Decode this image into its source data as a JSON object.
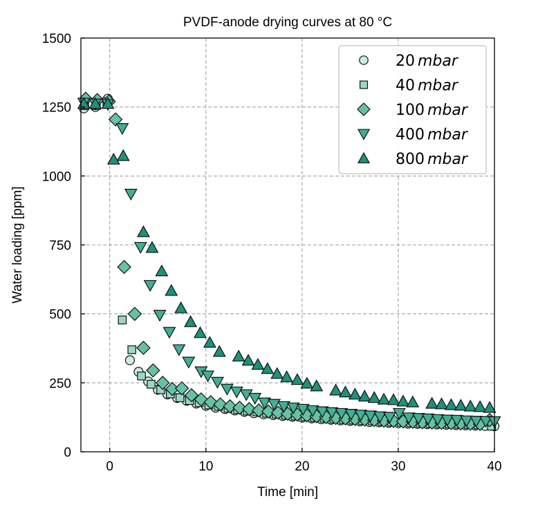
{
  "chart_data": {
    "type": "scatter",
    "title": "PVDF-anode drying curves at 80 °C",
    "xlabel": "Time [min]",
    "ylabel": "Water loading [ppm]",
    "xlim": [
      -3,
      40
    ],
    "ylim": [
      0,
      1500
    ],
    "xticks": [
      0,
      10,
      20,
      30,
      40
    ],
    "yticks": [
      0,
      250,
      500,
      750,
      1000,
      1250,
      1500
    ],
    "xtick_labels": [
      "0",
      "10",
      "20",
      "30",
      "40"
    ],
    "ytick_labels": [
      "0",
      "250",
      "500",
      "750",
      "1000",
      "1250",
      "1500"
    ],
    "grid": true,
    "grid_style": "dashed",
    "legend_position": "top-right",
    "series": [
      {
        "name": "20 mbar",
        "value_label": "20",
        "unit_label": "mbar",
        "marker": "circle",
        "color": "#ccece6",
        "points": [
          [
            -2.7,
            1245
          ],
          [
            -1.5,
            1250
          ],
          [
            -0.2,
            1280
          ],
          [
            2.1,
            332
          ],
          [
            3.0,
            290
          ],
          [
            4.0,
            255
          ],
          [
            5.0,
            225
          ],
          [
            6.0,
            208
          ],
          [
            7.0,
            195
          ],
          [
            8.0,
            185
          ],
          [
            9.0,
            175
          ],
          [
            10.0,
            167
          ],
          [
            11.0,
            160
          ],
          [
            12.0,
            155
          ],
          [
            13.0,
            150
          ],
          [
            14.0,
            145
          ],
          [
            15.0,
            140
          ],
          [
            16.0,
            136
          ],
          [
            17.0,
            133
          ],
          [
            18.0,
            130
          ],
          [
            19.0,
            127
          ],
          [
            20.0,
            124
          ],
          [
            21.0,
            121
          ],
          [
            22.0,
            118
          ],
          [
            23.0,
            116
          ],
          [
            24.0,
            114
          ],
          [
            25.0,
            112
          ],
          [
            26.0,
            110
          ],
          [
            27.0,
            108
          ],
          [
            28.0,
            107
          ],
          [
            29.0,
            105
          ],
          [
            30.0,
            104
          ],
          [
            31.0,
            102
          ],
          [
            32.0,
            101
          ],
          [
            33.0,
            100
          ],
          [
            34.0,
            99
          ],
          [
            35.0,
            98
          ],
          [
            36.0,
            97
          ],
          [
            37.0,
            96
          ],
          [
            38.0,
            95
          ],
          [
            39.0,
            94
          ],
          [
            40.0,
            93
          ]
        ]
      },
      {
        "name": "40 mbar",
        "value_label": "40",
        "unit_label": "mbar",
        "marker": "square",
        "color": "#99d8c9",
        "points": [
          [
            -2.6,
            1255
          ],
          [
            -1.4,
            1255
          ],
          [
            -0.3,
            1270
          ],
          [
            1.3,
            478
          ],
          [
            2.3,
            370
          ],
          [
            3.3,
            275
          ],
          [
            4.3,
            245
          ],
          [
            5.3,
            225
          ],
          [
            6.3,
            210
          ],
          [
            7.3,
            196
          ],
          [
            8.3,
            186
          ],
          [
            9.3,
            178
          ],
          [
            10.3,
            170
          ],
          [
            11.3,
            165
          ],
          [
            12.3,
            158
          ],
          [
            13.3,
            153
          ],
          [
            14.3,
            148
          ],
          [
            15.3,
            145
          ],
          [
            16.3,
            140
          ],
          [
            17.3,
            137
          ],
          [
            18.3,
            133
          ],
          [
            19.3,
            130
          ],
          [
            20.3,
            127
          ],
          [
            21.3,
            124
          ],
          [
            22.3,
            122
          ],
          [
            23.3,
            119
          ],
          [
            24.3,
            117
          ],
          [
            25.3,
            115
          ],
          [
            26.3,
            113
          ],
          [
            27.3,
            112
          ],
          [
            28.3,
            110
          ],
          [
            29.3,
            108
          ],
          [
            30.3,
            107
          ],
          [
            31.3,
            105
          ],
          [
            32.3,
            104
          ],
          [
            33.3,
            103
          ],
          [
            34.3,
            102
          ],
          [
            35.3,
            101
          ],
          [
            36.3,
            100
          ],
          [
            37.3,
            99
          ],
          [
            38.3,
            98
          ],
          [
            39.7,
            93
          ]
        ]
      },
      {
        "name": "100 mbar",
        "value_label": "100",
        "unit_label": "mbar",
        "marker": "diamond",
        "color": "#66c2a4",
        "points": [
          [
            -2.5,
            1280
          ],
          [
            -1.3,
            1275
          ],
          [
            -0.1,
            1270
          ],
          [
            0.6,
            1205
          ],
          [
            1.5,
            670
          ],
          [
            2.6,
            500
          ],
          [
            3.5,
            377
          ],
          [
            4.5,
            295
          ],
          [
            5.5,
            250
          ],
          [
            6.5,
            228
          ],
          [
            7.5,
            230
          ],
          [
            8.5,
            205
          ],
          [
            9.5,
            190
          ],
          [
            10.5,
            180
          ],
          [
            11.5,
            172
          ],
          [
            12.5,
            165
          ],
          [
            13.5,
            160
          ],
          [
            14.5,
            155
          ],
          [
            15.5,
            150
          ],
          [
            16.5,
            146
          ],
          [
            17.5,
            142
          ],
          [
            18.5,
            138
          ],
          [
            19.5,
            135
          ],
          [
            20.5,
            132
          ],
          [
            21.5,
            129
          ],
          [
            22.5,
            126
          ],
          [
            23.5,
            123
          ],
          [
            24.5,
            121
          ],
          [
            25.5,
            119
          ],
          [
            26.5,
            117
          ],
          [
            27.5,
            115
          ],
          [
            28.5,
            113
          ],
          [
            29.5,
            112
          ],
          [
            30.5,
            110
          ],
          [
            31.5,
            109
          ],
          [
            32.5,
            107
          ],
          [
            33.5,
            106
          ],
          [
            34.5,
            105
          ],
          [
            35.5,
            104
          ],
          [
            36.5,
            103
          ],
          [
            37.5,
            102
          ],
          [
            38.5,
            101
          ],
          [
            39.5,
            115
          ]
        ]
      },
      {
        "name": "400 mbar",
        "value_label": "400",
        "unit_label": "mbar",
        "marker": "triangle-down",
        "color": "#41ae96",
        "points": [
          [
            -2.7,
            1265
          ],
          [
            -1.5,
            1262
          ],
          [
            -0.2,
            1260
          ],
          [
            1.3,
            1173
          ],
          [
            2.2,
            935
          ],
          [
            3.2,
            742
          ],
          [
            4.2,
            604
          ],
          [
            5.2,
            496
          ],
          [
            6.2,
            434
          ],
          [
            7.2,
            371
          ],
          [
            8.2,
            326
          ],
          [
            9.5,
            291
          ],
          [
            10.2,
            276
          ],
          [
            11.2,
            253
          ],
          [
            12.2,
            228
          ],
          [
            13.2,
            218
          ],
          [
            14.2,
            208
          ],
          [
            15.1,
            195
          ],
          [
            16.1,
            178
          ],
          [
            17.1,
            173
          ],
          [
            18.1,
            165
          ],
          [
            19.1,
            160
          ],
          [
            20.1,
            155
          ],
          [
            21.1,
            150
          ],
          [
            22.1,
            146
          ],
          [
            23.1,
            143
          ],
          [
            24.1,
            140
          ],
          [
            25.1,
            137
          ],
          [
            26.1,
            134
          ],
          [
            27.1,
            131
          ],
          [
            28.1,
            128
          ],
          [
            29.1,
            126
          ],
          [
            30.1,
            140
          ],
          [
            31.1,
            124
          ],
          [
            32.1,
            122
          ],
          [
            33.1,
            120
          ],
          [
            34.1,
            118
          ],
          [
            35.1,
            116
          ],
          [
            36.1,
            115
          ],
          [
            37.1,
            113
          ],
          [
            38.1,
            112
          ],
          [
            39.1,
            111
          ],
          [
            40.0,
            110
          ]
        ]
      },
      {
        "name": "800 mbar",
        "value_label": "800",
        "unit_label": "mbar",
        "marker": "triangle-up",
        "color": "#1f9079",
        "points": [
          [
            -2.7,
            1262
          ],
          [
            -1.5,
            1262
          ],
          [
            -0.2,
            1262
          ],
          [
            0.4,
            1060
          ],
          [
            1.4,
            1073
          ],
          [
            3.5,
            797
          ],
          [
            4.4,
            740
          ],
          [
            5.4,
            655
          ],
          [
            6.4,
            584
          ],
          [
            7.4,
            521
          ],
          [
            8.4,
            471
          ],
          [
            9.4,
            431
          ],
          [
            10.4,
            396
          ],
          [
            11.4,
            363
          ],
          [
            13.4,
            346
          ],
          [
            14.4,
            331
          ],
          [
            15.4,
            316
          ],
          [
            16.4,
            301
          ],
          [
            17.4,
            283
          ],
          [
            18.4,
            271
          ],
          [
            19.5,
            261
          ],
          [
            20.5,
            248
          ],
          [
            21.5,
            238
          ],
          [
            23.5,
            223
          ],
          [
            24.5,
            216
          ],
          [
            25.5,
            208
          ],
          [
            26.5,
            201
          ],
          [
            27.5,
            196
          ],
          [
            28.5,
            190
          ],
          [
            29.5,
            188
          ],
          [
            30.5,
            183
          ],
          [
            31.5,
            180
          ],
          [
            33.5,
            175
          ],
          [
            34.5,
            173
          ],
          [
            35.5,
            170
          ],
          [
            36.5,
            168
          ],
          [
            37.5,
            165
          ],
          [
            38.5,
            163
          ],
          [
            39.5,
            160
          ]
        ]
      }
    ]
  }
}
